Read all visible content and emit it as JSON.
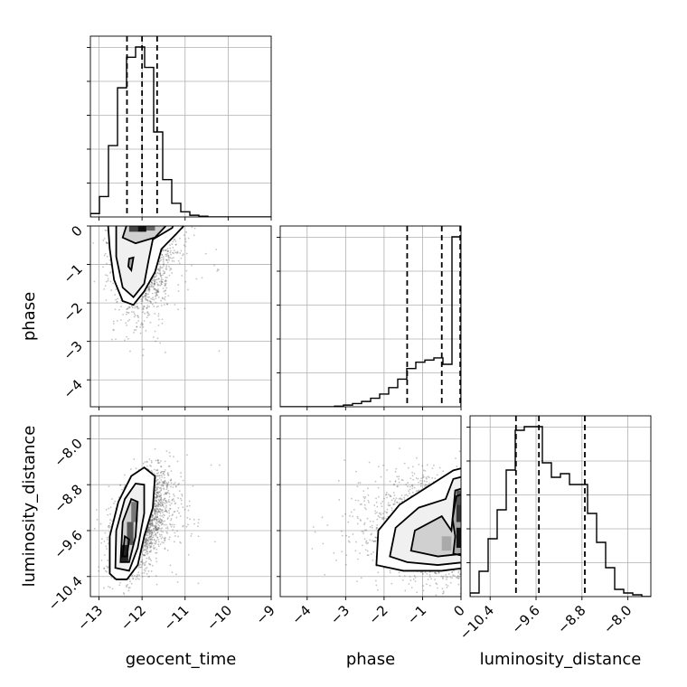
{
  "chart_data": {
    "type": "corner",
    "parameters": [
      "geocent_time",
      "phase",
      "luminosity_distance"
    ],
    "axis_labels": [
      "geocent_time",
      "phase",
      "luminosity_distance"
    ],
    "ranges": {
      "geocent_time": [
        -13.2,
        -9.0
      ],
      "phase": [
        -4.7,
        0.0
      ],
      "luminosity_distance": [
        -10.75,
        -7.6
      ]
    },
    "ticks": {
      "geocent_time": [
        -13,
        -12,
        -11,
        -10,
        -9
      ],
      "phase": [
        0,
        -1,
        -2,
        -3,
        -4
      ],
      "luminosity_distance": [
        -8.0,
        -8.8,
        -9.6,
        -10.4
      ]
    },
    "tick_labels": {
      "geocent_time": [
        "−13",
        "−12",
        "−11",
        "−10",
        "−9"
      ],
      "phase": [
        "0",
        "−1",
        "−2",
        "−3",
        "−4"
      ],
      "luminosity_distance": [
        "−8.0",
        "−8.8",
        "−9.6",
        "−10.4"
      ]
    },
    "quantiles": {
      "geocent_time": [
        -12.35,
        -12.0,
        -11.65
      ],
      "phase": [
        -1.4,
        -0.5,
        -0.02
      ],
      "luminosity_distance": [
        -9.95,
        -9.55,
        -8.75
      ]
    },
    "histograms": {
      "geocent_time": {
        "edges": [
          -13.2,
          -12.99,
          -12.78,
          -12.57,
          -12.36,
          -12.15,
          -11.94,
          -11.73,
          -11.52,
          -11.31,
          -11.1,
          -10.89,
          -10.68,
          -10.47,
          -10.26,
          -10.05,
          -9.84,
          -9.63,
          -9.42,
          -9.21,
          -9.0
        ],
        "counts": [
          1,
          6,
          21,
          38,
          47,
          50,
          44,
          25,
          11,
          4,
          1.5,
          0.5,
          0.2,
          0,
          0,
          0,
          0,
          0,
          0,
          0
        ]
      },
      "phase": {
        "edges": [
          -4.7,
          -4.465,
          -4.23,
          -3.995,
          -3.76,
          -3.525,
          -3.29,
          -3.055,
          -2.82,
          -2.585,
          -2.35,
          -2.115,
          -1.88,
          -1.645,
          -1.41,
          -1.175,
          -0.94,
          -0.705,
          -0.47,
          -0.235,
          0.0
        ],
        "counts": [
          0,
          0,
          0,
          0,
          0,
          0,
          0.3,
          0.8,
          1.5,
          2.5,
          4,
          6,
          9,
          13,
          18,
          21,
          22,
          23,
          20,
          80
        ]
      },
      "luminosity_distance": {
        "edges": [
          -10.75,
          -10.5925,
          -10.435,
          -10.2775,
          -10.12,
          -9.9625,
          -9.805,
          -9.6475,
          -9.49,
          -9.3325,
          -9.175,
          -9.0175,
          -8.86,
          -8.7025,
          -8.545,
          -8.3875,
          -8.23,
          -8.0725,
          -7.915,
          -7.7575,
          -7.6
        ],
        "counts": [
          1,
          7,
          16,
          24,
          35,
          46,
          47,
          47,
          37,
          33,
          34,
          31,
          31,
          23,
          15,
          8,
          2,
          1,
          0.5,
          0
        ]
      }
    },
    "contour_levels": [
      "0.5",
      "0.9",
      "0.98"
    ],
    "samples_marker": "gray scatter points with density-shaded contour fill"
  }
}
